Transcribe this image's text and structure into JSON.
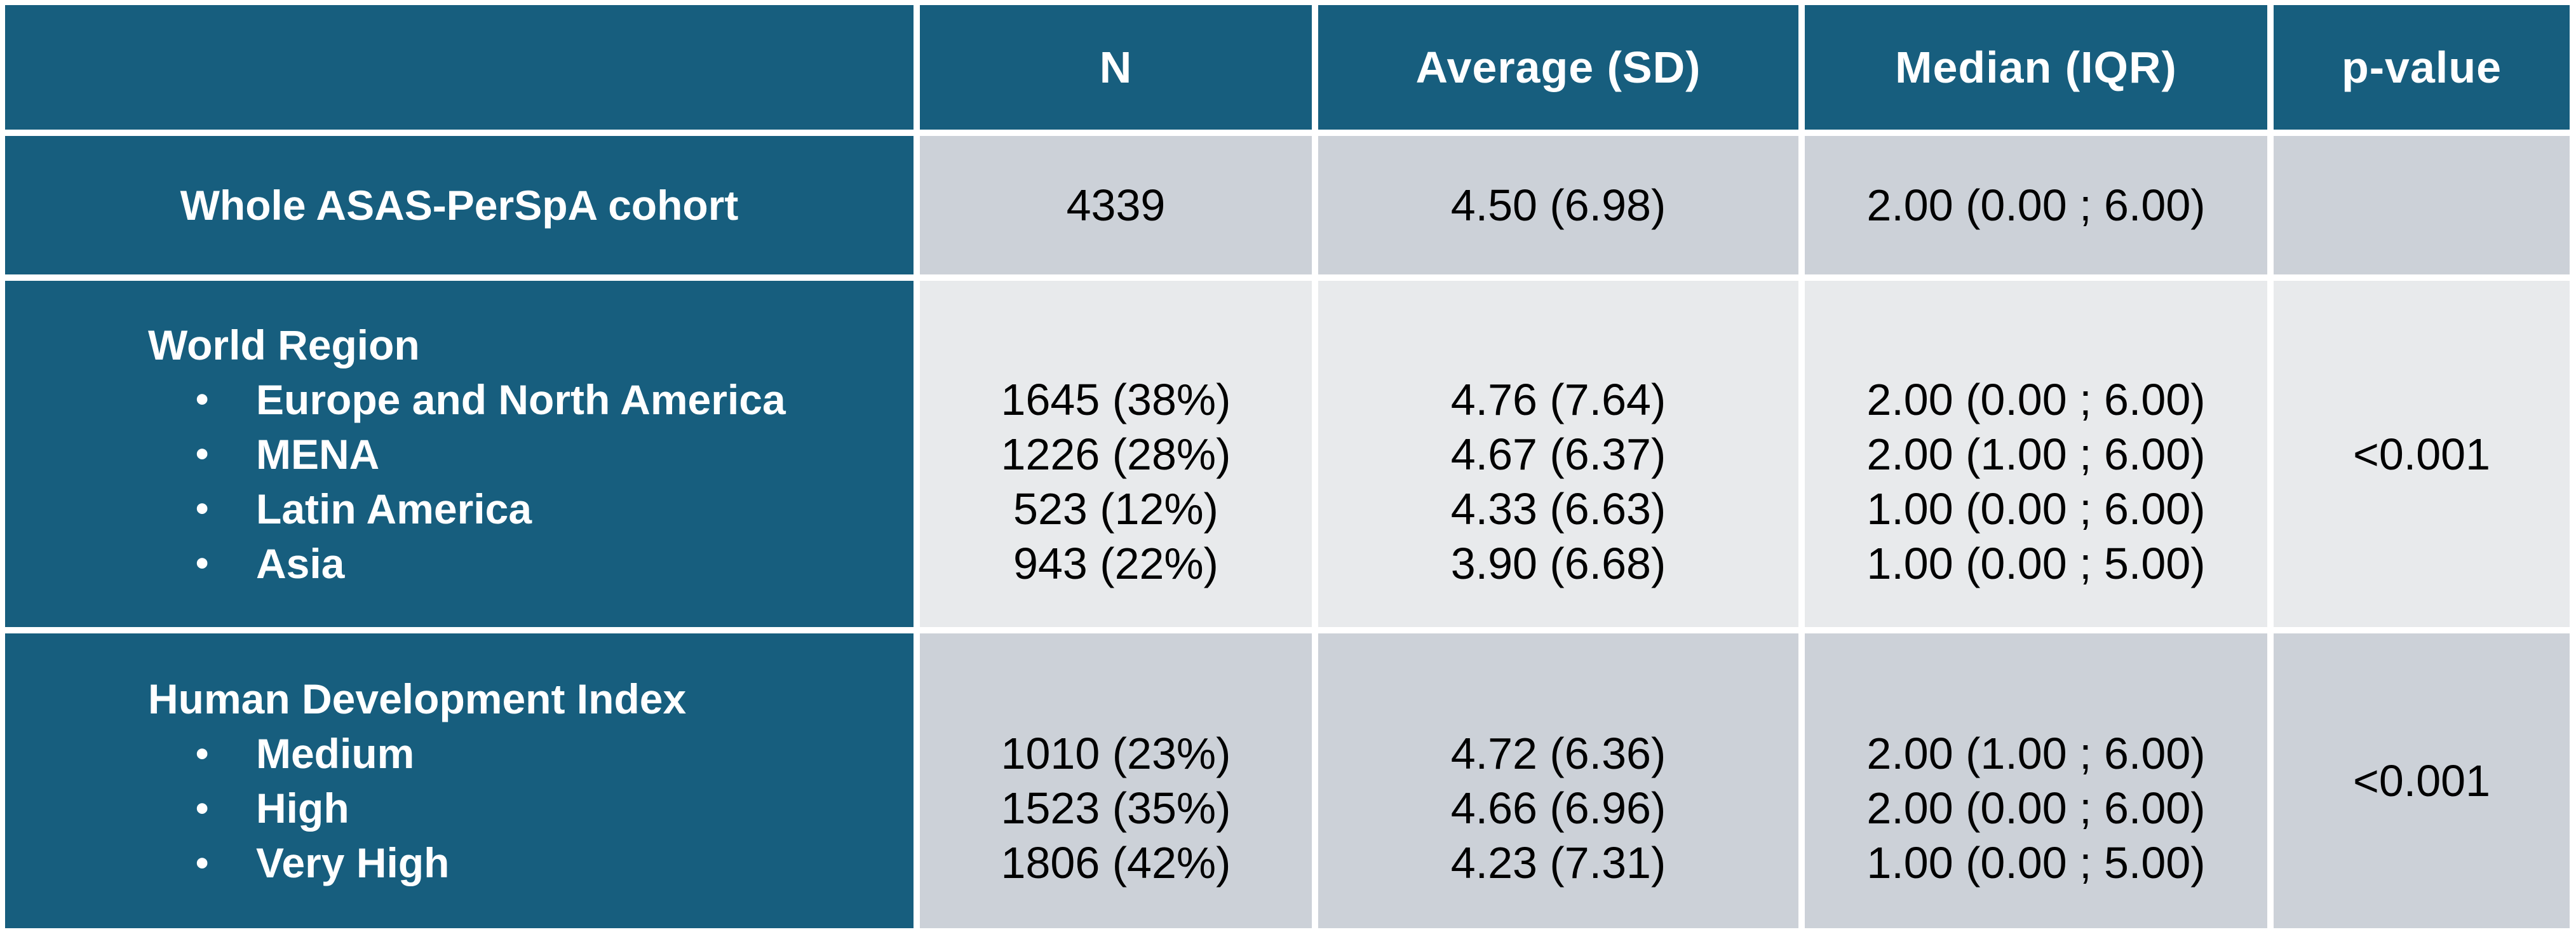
{
  "table": {
    "accent_color": "#175E7E",
    "row_dark_bg": "#CCD1D8",
    "row_light_bg": "#E8EAEC",
    "bullet_glyph": "•",
    "header": {
      "col0": "",
      "col1": "N",
      "col2": "Average (SD)",
      "col3": "Median (IQR)",
      "col4": "p-value"
    },
    "cohort_row": {
      "label": "Whole ASAS-PerSpA cohort",
      "n": "4339",
      "avg": "4.50 (6.98)",
      "median": "2.00 (0.00 ; 6.00)",
      "p_value": ""
    },
    "sections": [
      {
        "title": "World Region",
        "p_value": "<0.001",
        "items": [
          {
            "label": "Europe and North America",
            "n": "1645 (38%)",
            "avg": "4.76 (7.64)",
            "median": "2.00 (0.00 ; 6.00)"
          },
          {
            "label": "MENA",
            "n": "1226 (28%)",
            "avg": "4.67 (6.37)",
            "median": "2.00 (1.00 ; 6.00)"
          },
          {
            "label": "Latin America",
            "n": "523 (12%)",
            "avg": "4.33 (6.63)",
            "median": "1.00 (0.00 ; 6.00)"
          },
          {
            "label": "Asia",
            "n": "943 (22%)",
            "avg": "3.90 (6.68)",
            "median": "1.00 (0.00 ; 5.00)"
          }
        ]
      },
      {
        "title": "Human Development Index",
        "p_value": "<0.001",
        "items": [
          {
            "label": "Medium",
            "n": "1010 (23%)",
            "avg": "4.72 (6.36)",
            "median": "2.00 (1.00 ; 6.00)"
          },
          {
            "label": "High",
            "n": "1523 (35%)",
            "avg": "4.66 (6.96)",
            "median": "2.00 (0.00 ; 6.00)"
          },
          {
            "label": "Very High",
            "n": "1806 (42%)",
            "avg": "4.23 (7.31)",
            "median": "1.00 (0.00 ; 5.00)"
          }
        ]
      }
    ]
  },
  "chart_data": {
    "type": "table",
    "columns": [
      "",
      "N",
      "Average (SD)",
      "Median (IQR)",
      "p-value"
    ],
    "rows": [
      [
        "Whole ASAS-PerSpA cohort",
        "4339",
        "4.50 (6.98)",
        "2.00 (0.00 ; 6.00)",
        ""
      ],
      [
        "World Region – Europe and North America",
        "1645 (38%)",
        "4.76 (7.64)",
        "2.00 (0.00 ; 6.00)",
        "<0.001"
      ],
      [
        "World Region – MENA",
        "1226 (28%)",
        "4.67 (6.37)",
        "2.00 (1.00 ; 6.00)",
        "<0.001"
      ],
      [
        "World Region – Latin America",
        "523 (12%)",
        "4.33 (6.63)",
        "1.00 (0.00 ; 6.00)",
        "<0.001"
      ],
      [
        "World Region – Asia",
        "943 (22%)",
        "3.90 (6.68)",
        "1.00 (0.00 ; 5.00)",
        "<0.001"
      ],
      [
        "Human Development Index – Medium",
        "1010 (23%)",
        "4.72 (6.36)",
        "2.00 (1.00 ; 6.00)",
        "<0.001"
      ],
      [
        "Human Development Index – High",
        "1523 (35%)",
        "4.66 (6.96)",
        "2.00 (0.00 ; 6.00)",
        "<0.001"
      ],
      [
        "Human Development Index – Very High",
        "1806 (42%)",
        "4.23 (7.31)",
        "1.00 (0.00 ; 5.00)",
        "<0.001"
      ]
    ]
  }
}
